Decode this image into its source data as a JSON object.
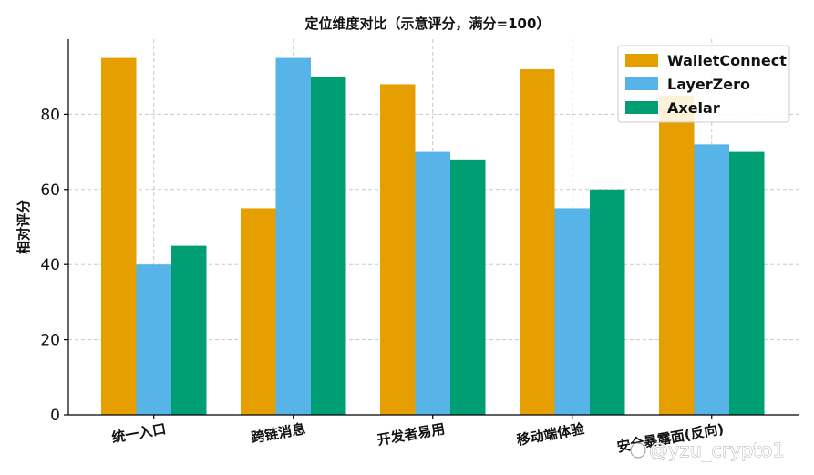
{
  "chart_data": {
    "type": "bar",
    "title": "定位维度对比（示意评分，满分=100）",
    "xlabel": "",
    "ylabel": "相对评分",
    "categories": [
      "统一入口",
      "跨链消息",
      "开发者易用",
      "移动端体验",
      "安全暴露面(反向)"
    ],
    "series": [
      {
        "name": "WalletConnect",
        "color": "#E69F00",
        "values": [
          95,
          55,
          88,
          92,
          85
        ]
      },
      {
        "name": "LayerZero",
        "color": "#56B4E9",
        "values": [
          40,
          95,
          70,
          55,
          72
        ]
      },
      {
        "name": "Axelar",
        "color": "#009E73",
        "values": [
          45,
          90,
          68,
          60,
          70
        ]
      }
    ],
    "ylim": [
      0,
      100
    ],
    "yticks": [
      0,
      20,
      40,
      60,
      80
    ],
    "grid": true,
    "legend_position": "top-right"
  },
  "watermark": "@yzu_crypto1"
}
